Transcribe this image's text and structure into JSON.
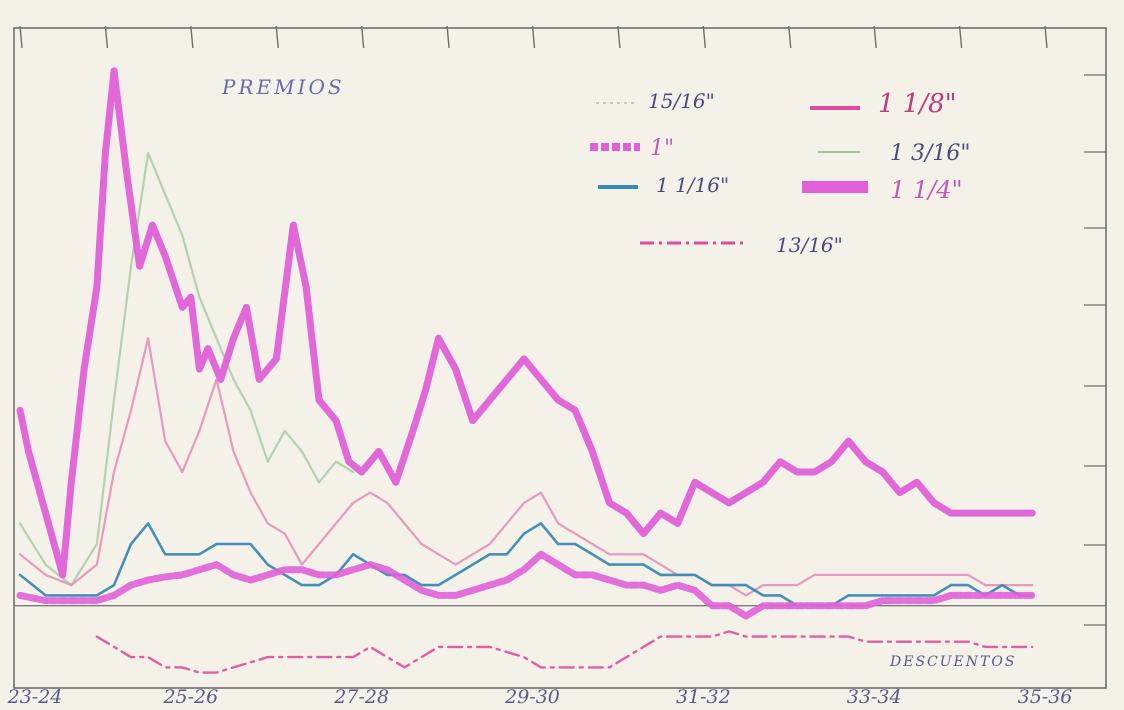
{
  "colors": {
    "paper": "#f4f1e8",
    "frame": "#6f6f6f",
    "magenta": "#e060d8",
    "blue": "#3a8ab6",
    "green": "#9dc79b",
    "pink_line": "#e04c9c",
    "pencil": "#5a5a8a"
  },
  "chart_data": {
    "type": "line",
    "title": "PREMIOS",
    "bottom_label": "DESCUENTOS",
    "x_tick_labels": [
      "23-24",
      "25-26",
      "27-28",
      "29-30",
      "31-32",
      "33-34",
      "35-36"
    ],
    "x_tick_positions": [
      0,
      2,
      4,
      6,
      8,
      10,
      12
    ],
    "xlim": [
      0,
      12
    ],
    "ylim": [
      -8,
      55
    ],
    "grid": false,
    "legend_position": "top-right",
    "legend": [
      {
        "label": "15/16\"",
        "series": "15/16",
        "style": "dotted-thin"
      },
      {
        "label": "1 1/8\"",
        "series": "1_1_8",
        "style": "solid-medium"
      },
      {
        "label": "1\"",
        "series": "1",
        "style": "dashed-thick"
      },
      {
        "label": "1 3/16\"",
        "series": "1_3_16",
        "style": "solid-thin"
      },
      {
        "label": "1 1/16\"",
        "series": "1_1_16",
        "style": "solid-medium"
      },
      {
        "label": "1 1/4\"",
        "series": "1_1_4",
        "style": "solid-thick"
      },
      {
        "label": "13/16\"",
        "series": "13_16",
        "style": "dashdot"
      }
    ],
    "series": [
      {
        "name": "1 1/4\"",
        "key": "1_1_4",
        "color": "#e060d8",
        "x": [
          0,
          0.1,
          0.3,
          0.5,
          0.6,
          0.75,
          0.9,
          1.0,
          1.1,
          1.25,
          1.4,
          1.55,
          1.7,
          1.9,
          2.0,
          2.1,
          2.2,
          2.35,
          2.5,
          2.65,
          2.8,
          3.0,
          3.2,
          3.35,
          3.5,
          3.7,
          3.85,
          4.0,
          4.2,
          4.4,
          4.6,
          4.75,
          4.9,
          5.1,
          5.3,
          5.5,
          5.7,
          5.9,
          6.1,
          6.3,
          6.5,
          6.7,
          6.9,
          7.1,
          7.3,
          7.5,
          7.7,
          7.9,
          8.1,
          8.3,
          8.5,
          8.7,
          8.9,
          9.1,
          9.3,
          9.5,
          9.7,
          9.9,
          10.1,
          10.3,
          10.5,
          10.7,
          10.9,
          11.1,
          11.3,
          11.5,
          11.7,
          11.85
        ],
        "values": [
          19,
          15,
          9,
          3,
          12,
          23,
          31,
          44,
          52,
          42,
          33,
          37,
          34,
          29,
          30,
          23,
          25,
          22,
          26,
          29,
          22,
          24,
          37,
          31,
          20,
          18,
          14,
          13,
          15,
          12,
          17,
          21,
          26,
          23,
          18,
          20,
          22,
          24,
          22,
          20,
          19,
          15,
          10,
          9,
          7,
          9,
          8,
          12,
          11,
          10,
          11,
          12,
          14,
          13,
          13,
          14,
          16,
          14,
          13,
          11,
          12,
          10,
          9,
          9,
          9,
          9,
          9,
          9
        ]
      },
      {
        "name": "1 1/8\"",
        "key": "1_1_8",
        "color": "#e48ab8",
        "x": [
          0,
          0.3,
          0.6,
          0.9,
          1.1,
          1.3,
          1.5,
          1.7,
          1.9,
          2.1,
          2.3,
          2.5,
          2.7,
          2.9,
          3.1,
          3.3,
          3.5,
          3.7,
          3.9,
          4.1,
          4.3,
          4.5,
          4.7,
          4.9,
          5.1,
          5.3,
          5.5,
          5.7,
          5.9,
          6.1,
          6.3,
          6.5,
          6.7,
          6.9,
          7.1,
          7.3,
          7.5,
          7.7,
          7.9,
          8.1,
          8.3,
          8.5,
          8.7,
          8.9,
          9.1,
          9.3,
          9.5,
          9.7,
          9.9,
          10.1,
          10.3,
          10.5,
          10.7,
          10.9,
          11.1,
          11.3,
          11.5,
          11.7,
          11.85
        ],
        "values": [
          5,
          3,
          2,
          4,
          13,
          19,
          26,
          16,
          13,
          17,
          22,
          15,
          11,
          8,
          7,
          4,
          6,
          8,
          10,
          11,
          10,
          8,
          6,
          5,
          4,
          5,
          6,
          8,
          10,
          11,
          8,
          7,
          6,
          5,
          5,
          5,
          4,
          3,
          3,
          2,
          2,
          1,
          2,
          2,
          2,
          3,
          3,
          3,
          3,
          3,
          3,
          3,
          3,
          3,
          3,
          2,
          2,
          2,
          2
        ]
      },
      {
        "name": "1 3/16\"",
        "key": "1_3_16",
        "color": "#9dc79b",
        "x": [
          0,
          0.3,
          0.6,
          0.9,
          1.1,
          1.3,
          1.5,
          1.7,
          1.9,
          2.1,
          2.3,
          2.5,
          2.7,
          2.9,
          3.1,
          3.3,
          3.5,
          3.7,
          3.9
        ],
        "values": [
          8,
          4,
          2,
          6,
          20,
          33,
          44,
          40,
          36,
          30,
          26,
          22,
          19,
          14,
          17,
          15,
          12,
          14,
          13
        ]
      },
      {
        "name": "1 1/16\"",
        "key": "1_1_16",
        "color": "#3a8ab6",
        "x": [
          0,
          0.3,
          0.6,
          0.9,
          1.1,
          1.3,
          1.5,
          1.7,
          1.9,
          2.1,
          2.3,
          2.5,
          2.7,
          2.9,
          3.1,
          3.3,
          3.5,
          3.7,
          3.9,
          4.1,
          4.3,
          4.5,
          4.7,
          4.9,
          5.1,
          5.3,
          5.5,
          5.7,
          5.9,
          6.1,
          6.3,
          6.5,
          6.7,
          6.9,
          7.1,
          7.3,
          7.5,
          7.7,
          7.9,
          8.1,
          8.3,
          8.5,
          8.7,
          8.9,
          9.1,
          9.3,
          9.5,
          9.7,
          9.9,
          10.1,
          10.3,
          10.5,
          10.7,
          10.9,
          11.1,
          11.3,
          11.5,
          11.7,
          11.85
        ],
        "values": [
          3,
          1,
          1,
          1,
          2,
          6,
          8,
          5,
          5,
          5,
          6,
          6,
          6,
          4,
          3,
          2,
          2,
          3,
          5,
          4,
          3,
          3,
          2,
          2,
          3,
          4,
          5,
          5,
          7,
          8,
          6,
          6,
          5,
          4,
          4,
          4,
          3,
          3,
          3,
          2,
          2,
          2,
          1,
          1,
          0,
          0,
          0,
          1,
          1,
          1,
          1,
          1,
          1,
          2,
          2,
          1,
          2,
          1,
          1
        ]
      },
      {
        "name": "1\"",
        "key": "1",
        "color": "#e060d8",
        "x": [
          0,
          0.3,
          0.6,
          0.9,
          1.1,
          1.3,
          1.5,
          1.7,
          1.9,
          2.1,
          2.3,
          2.5,
          2.7,
          2.9,
          3.1,
          3.3,
          3.5,
          3.7,
          3.9,
          4.1,
          4.3,
          4.5,
          4.7,
          4.9,
          5.1,
          5.3,
          5.5,
          5.7,
          5.9,
          6.1,
          6.3,
          6.5,
          6.7,
          6.9,
          7.1,
          7.3,
          7.5,
          7.7,
          7.9,
          8.1,
          8.3,
          8.5,
          8.7,
          8.9,
          9.1,
          9.3,
          9.5,
          9.7,
          9.9,
          10.1,
          10.3,
          10.5,
          10.7,
          10.9,
          11.1,
          11.3,
          11.5,
          11.7,
          11.85
        ],
        "values": [
          1,
          0.5,
          0.5,
          0.5,
          1,
          2,
          2.5,
          2.8,
          3,
          3.5,
          4,
          3,
          2.5,
          3,
          3.5,
          3.5,
          3,
          3,
          3.5,
          4,
          3.5,
          2.5,
          1.5,
          1,
          1,
          1.5,
          2,
          2.5,
          3.5,
          5,
          4,
          3,
          3,
          2.5,
          2,
          2,
          1.5,
          2,
          1.5,
          0,
          0,
          -1,
          0,
          0,
          0,
          0,
          0,
          0,
          0,
          0.5,
          0.5,
          0.5,
          0.5,
          1,
          1,
          1,
          1,
          1,
          1
        ]
      },
      {
        "name": "13/16\"",
        "key": "13_16",
        "color": "#e04c9c",
        "x": [
          0.9,
          1.1,
          1.3,
          1.5,
          1.7,
          1.9,
          2.1,
          2.3,
          2.5,
          2.7,
          2.9,
          3.1,
          3.3,
          3.5,
          3.7,
          3.9,
          4.1,
          4.3,
          4.5,
          4.7,
          4.9,
          5.1,
          5.3,
          5.5,
          5.7,
          5.9,
          6.1,
          6.3,
          6.5,
          6.7,
          6.9,
          7.1,
          7.3,
          7.5,
          7.7,
          7.9,
          8.1,
          8.3,
          8.5,
          8.7,
          8.9,
          9.1,
          9.3,
          9.5,
          9.7,
          9.9,
          10.1,
          10.3,
          10.5,
          10.7,
          10.9,
          11.1,
          11.3,
          11.5,
          11.7,
          11.85
        ],
        "values": [
          -3,
          -4,
          -5,
          -5,
          -6,
          -6,
          -6.5,
          -6.5,
          -6,
          -5.5,
          -5,
          -5,
          -5,
          -5,
          -5,
          -5,
          -4,
          -5,
          -6,
          -5,
          -4,
          -4,
          -4,
          -4,
          -4.5,
          -5,
          -6,
          -6,
          -6,
          -6,
          -6,
          -5,
          -4,
          -3,
          -3,
          -3,
          -3,
          -2.5,
          -3,
          -3,
          -3,
          -3,
          -3,
          -3,
          -3,
          -3.5,
          -3.5,
          -3.5,
          -3.5,
          -3.5,
          -3.5,
          -3.5,
          -4,
          -4,
          -4,
          -4
        ]
      }
    ]
  }
}
